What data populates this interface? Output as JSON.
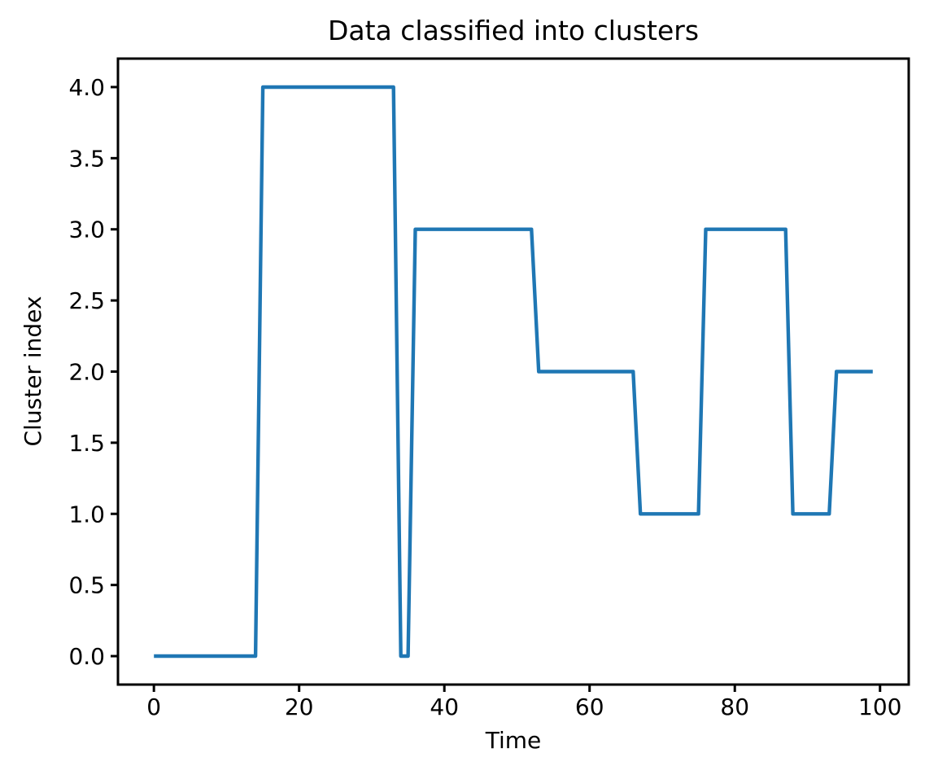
{
  "chart_data": {
    "type": "line",
    "title": "Data classified into clusters",
    "xlabel": "Time",
    "ylabel": "Cluster index",
    "line_color": "#1f77b4",
    "axis_color": "#000000",
    "background_color": "#ffffff",
    "grid": false,
    "legend": null,
    "xlim": [
      -4.95,
      103.95
    ],
    "ylim": [
      -0.2,
      4.2
    ],
    "xticks": [
      0,
      20,
      40,
      60,
      80,
      100
    ],
    "xtick_labels": [
      "0",
      "20",
      "40",
      "60",
      "80",
      "100"
    ],
    "yticks": [
      0.0,
      0.5,
      1.0,
      1.5,
      2.0,
      2.5,
      3.0,
      3.5,
      4.0
    ],
    "ytick_labels": [
      "0.0",
      "0.5",
      "1.0",
      "1.5",
      "2.0",
      "2.5",
      "3.0",
      "3.5",
      "4.0"
    ],
    "x": [
      0,
      1,
      2,
      3,
      4,
      5,
      6,
      7,
      8,
      9,
      10,
      11,
      12,
      13,
      14,
      15,
      16,
      17,
      18,
      19,
      20,
      21,
      22,
      23,
      24,
      25,
      26,
      27,
      28,
      29,
      30,
      31,
      32,
      33,
      34,
      35,
      36,
      37,
      38,
      39,
      40,
      41,
      42,
      43,
      44,
      45,
      46,
      47,
      48,
      49,
      50,
      51,
      52,
      53,
      54,
      55,
      56,
      57,
      58,
      59,
      60,
      61,
      62,
      63,
      64,
      65,
      66,
      67,
      68,
      69,
      70,
      71,
      72,
      73,
      74,
      75,
      76,
      77,
      78,
      79,
      80,
      81,
      82,
      83,
      84,
      85,
      86,
      87,
      88,
      89,
      90,
      91,
      92,
      93,
      94,
      95,
      96,
      97,
      98,
      99
    ],
    "y": [
      0,
      0,
      0,
      0,
      0,
      0,
      0,
      0,
      0,
      0,
      0,
      0,
      0,
      0,
      0,
      4,
      4,
      4,
      4,
      4,
      4,
      4,
      4,
      4,
      4,
      4,
      4,
      4,
      4,
      4,
      4,
      4,
      4,
      4,
      0,
      0,
      3,
      3,
      3,
      3,
      3,
      3,
      3,
      3,
      3,
      3,
      3,
      3,
      3,
      3,
      3,
      3,
      3,
      2,
      2,
      2,
      2,
      2,
      2,
      2,
      2,
      2,
      2,
      2,
      2,
      2,
      2,
      1,
      1,
      1,
      1,
      1,
      1,
      1,
      1,
      1,
      3,
      3,
      3,
      3,
      3,
      3,
      3,
      3,
      3,
      3,
      3,
      3,
      1,
      1,
      1,
      1,
      1,
      1,
      2,
      2,
      2,
      2,
      2,
      2
    ]
  }
}
